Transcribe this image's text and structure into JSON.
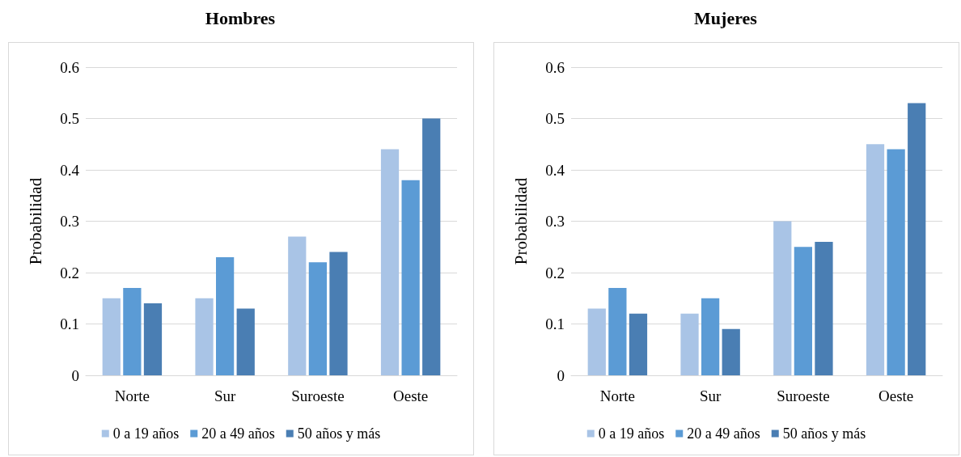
{
  "chart_data": [
    {
      "type": "bar",
      "title": "Hombres",
      "ylabel": "Probabilidad",
      "categories": [
        "Norte",
        "Sur",
        "Suroeste",
        "Oeste"
      ],
      "series": [
        {
          "name": "0 a 19 años",
          "color": "#a9c4e6",
          "values": [
            0.15,
            0.15,
            0.27,
            0.44
          ]
        },
        {
          "name": "20 a 49 años",
          "color": "#5b9bd5",
          "values": [
            0.17,
            0.23,
            0.22,
            0.38
          ]
        },
        {
          "name": "50 años y más",
          "color": "#4a7eb3",
          "values": [
            0.14,
            0.13,
            0.24,
            0.5
          ]
        }
      ],
      "ylim": [
        0,
        0.6
      ],
      "yticks": [
        0,
        0.1,
        0.2,
        0.3,
        0.4,
        0.5,
        0.6
      ],
      "grid": "y",
      "legend": "bottom"
    },
    {
      "type": "bar",
      "title": "Mujeres",
      "ylabel": "Probabilidad",
      "categories": [
        "Norte",
        "Sur",
        "Suroeste",
        "Oeste"
      ],
      "series": [
        {
          "name": "0 a 19 años",
          "color": "#a9c4e6",
          "values": [
            0.13,
            0.12,
            0.3,
            0.45
          ]
        },
        {
          "name": "20 a 49 años",
          "color": "#5b9bd5",
          "values": [
            0.17,
            0.15,
            0.25,
            0.44
          ]
        },
        {
          "name": "50 años y más",
          "color": "#4a7eb3",
          "values": [
            0.12,
            0.09,
            0.26,
            0.53
          ]
        }
      ],
      "ylim": [
        0,
        0.6
      ],
      "yticks": [
        0,
        0.1,
        0.2,
        0.3,
        0.4,
        0.5,
        0.6
      ],
      "grid": "y",
      "legend": "bottom"
    }
  ]
}
